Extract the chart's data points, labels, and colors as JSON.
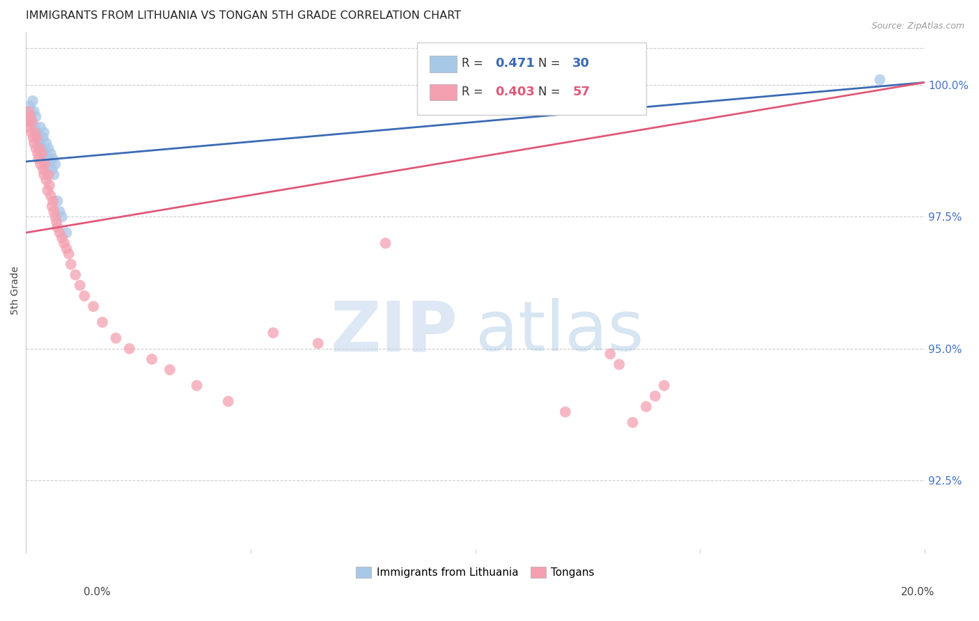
{
  "title": "IMMIGRANTS FROM LITHUANIA VS TONGAN 5TH GRADE CORRELATION CHART",
  "source": "Source: ZipAtlas.com",
  "ylabel": "5th Grade",
  "ytick_values": [
    92.5,
    95.0,
    97.5,
    100.0
  ],
  "xmin": 0.0,
  "xmax": 20.0,
  "ymin": 91.2,
  "ymax": 101.0,
  "blue_color": "#a8c8e8",
  "pink_color": "#f4a0b0",
  "blue_line_color": "#3a6ab4",
  "pink_line_color": "#e05878",
  "blue_scatter_x": [
    0.05,
    0.08,
    0.1,
    0.12,
    0.15,
    0.18,
    0.2,
    0.22,
    0.25,
    0.28,
    0.3,
    0.32,
    0.35,
    0.38,
    0.4,
    0.42,
    0.45,
    0.48,
    0.5,
    0.52,
    0.55,
    0.58,
    0.6,
    0.62,
    0.65,
    0.7,
    0.75,
    0.8,
    0.9,
    19.0
  ],
  "blue_scatter_y": [
    99.4,
    99.6,
    99.5,
    99.3,
    99.7,
    99.5,
    99.2,
    99.4,
    99.1,
    99.0,
    98.9,
    99.2,
    98.8,
    99.0,
    99.1,
    98.7,
    98.9,
    98.6,
    98.8,
    98.5,
    98.7,
    98.4,
    98.6,
    98.3,
    98.5,
    97.8,
    97.6,
    97.5,
    97.2,
    100.1
  ],
  "pink_scatter_x": [
    0.04,
    0.06,
    0.08,
    0.1,
    0.12,
    0.14,
    0.16,
    0.18,
    0.2,
    0.22,
    0.24,
    0.26,
    0.28,
    0.3,
    0.32,
    0.35,
    0.38,
    0.4,
    0.42,
    0.45,
    0.48,
    0.5,
    0.52,
    0.55,
    0.58,
    0.6,
    0.62,
    0.65,
    0.68,
    0.7,
    0.75,
    0.8,
    0.85,
    0.9,
    0.95,
    1.0,
    1.1,
    1.2,
    1.3,
    1.5,
    1.7,
    2.0,
    2.3,
    2.8,
    3.2,
    3.8,
    4.5,
    5.5,
    6.5,
    8.0,
    12.0,
    13.0,
    13.2,
    13.5,
    13.8,
    14.0,
    14.2
  ],
  "pink_scatter_y": [
    99.3,
    99.5,
    99.2,
    99.4,
    99.1,
    99.3,
    99.0,
    98.9,
    99.1,
    98.8,
    99.0,
    98.7,
    98.6,
    98.8,
    98.5,
    98.7,
    98.4,
    98.3,
    98.5,
    98.2,
    98.0,
    98.3,
    98.1,
    97.9,
    97.7,
    97.8,
    97.6,
    97.5,
    97.4,
    97.3,
    97.2,
    97.1,
    97.0,
    96.9,
    96.8,
    96.6,
    96.4,
    96.2,
    96.0,
    95.8,
    95.5,
    95.2,
    95.0,
    94.8,
    94.6,
    94.3,
    94.0,
    95.3,
    95.1,
    97.0,
    93.8,
    94.9,
    94.7,
    93.6,
    93.9,
    94.1,
    94.3
  ],
  "blue_line_x0": 0.0,
  "blue_line_x1": 20.0,
  "blue_line_y0": 98.55,
  "blue_line_y1": 100.05,
  "pink_line_x0": 0.0,
  "pink_line_x1": 20.0,
  "pink_line_y0": 97.2,
  "pink_line_y1": 100.05
}
